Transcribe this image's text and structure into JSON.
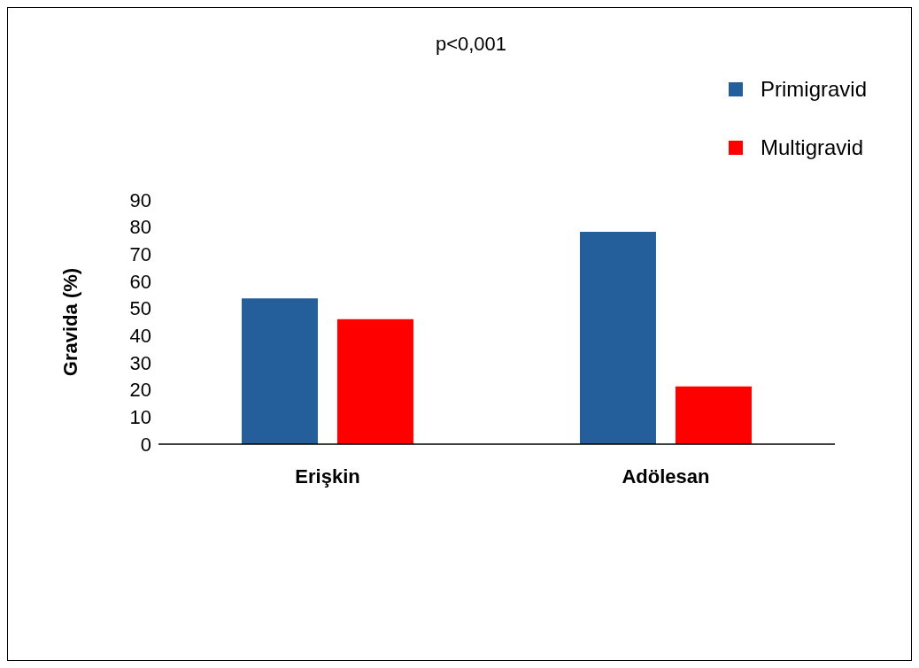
{
  "chart_data": {
    "type": "bar",
    "title": "p<0,001",
    "ylabel": "Gravida (%)",
    "categories": [
      "Erişkin",
      "Adölesan"
    ],
    "series": [
      {
        "name": "Primigravid",
        "color": "#245f9c",
        "values": [
          53.7,
          78.3
        ]
      },
      {
        "name": "Multigravid",
        "color": "#ff0000",
        "values": [
          46.1,
          21.3
        ]
      }
    ],
    "ylim": [
      0,
      90
    ],
    "yticks": [
      0,
      10,
      20,
      30,
      40,
      50,
      60,
      70,
      80,
      90
    ],
    "grid": false,
    "legend": "top right"
  }
}
